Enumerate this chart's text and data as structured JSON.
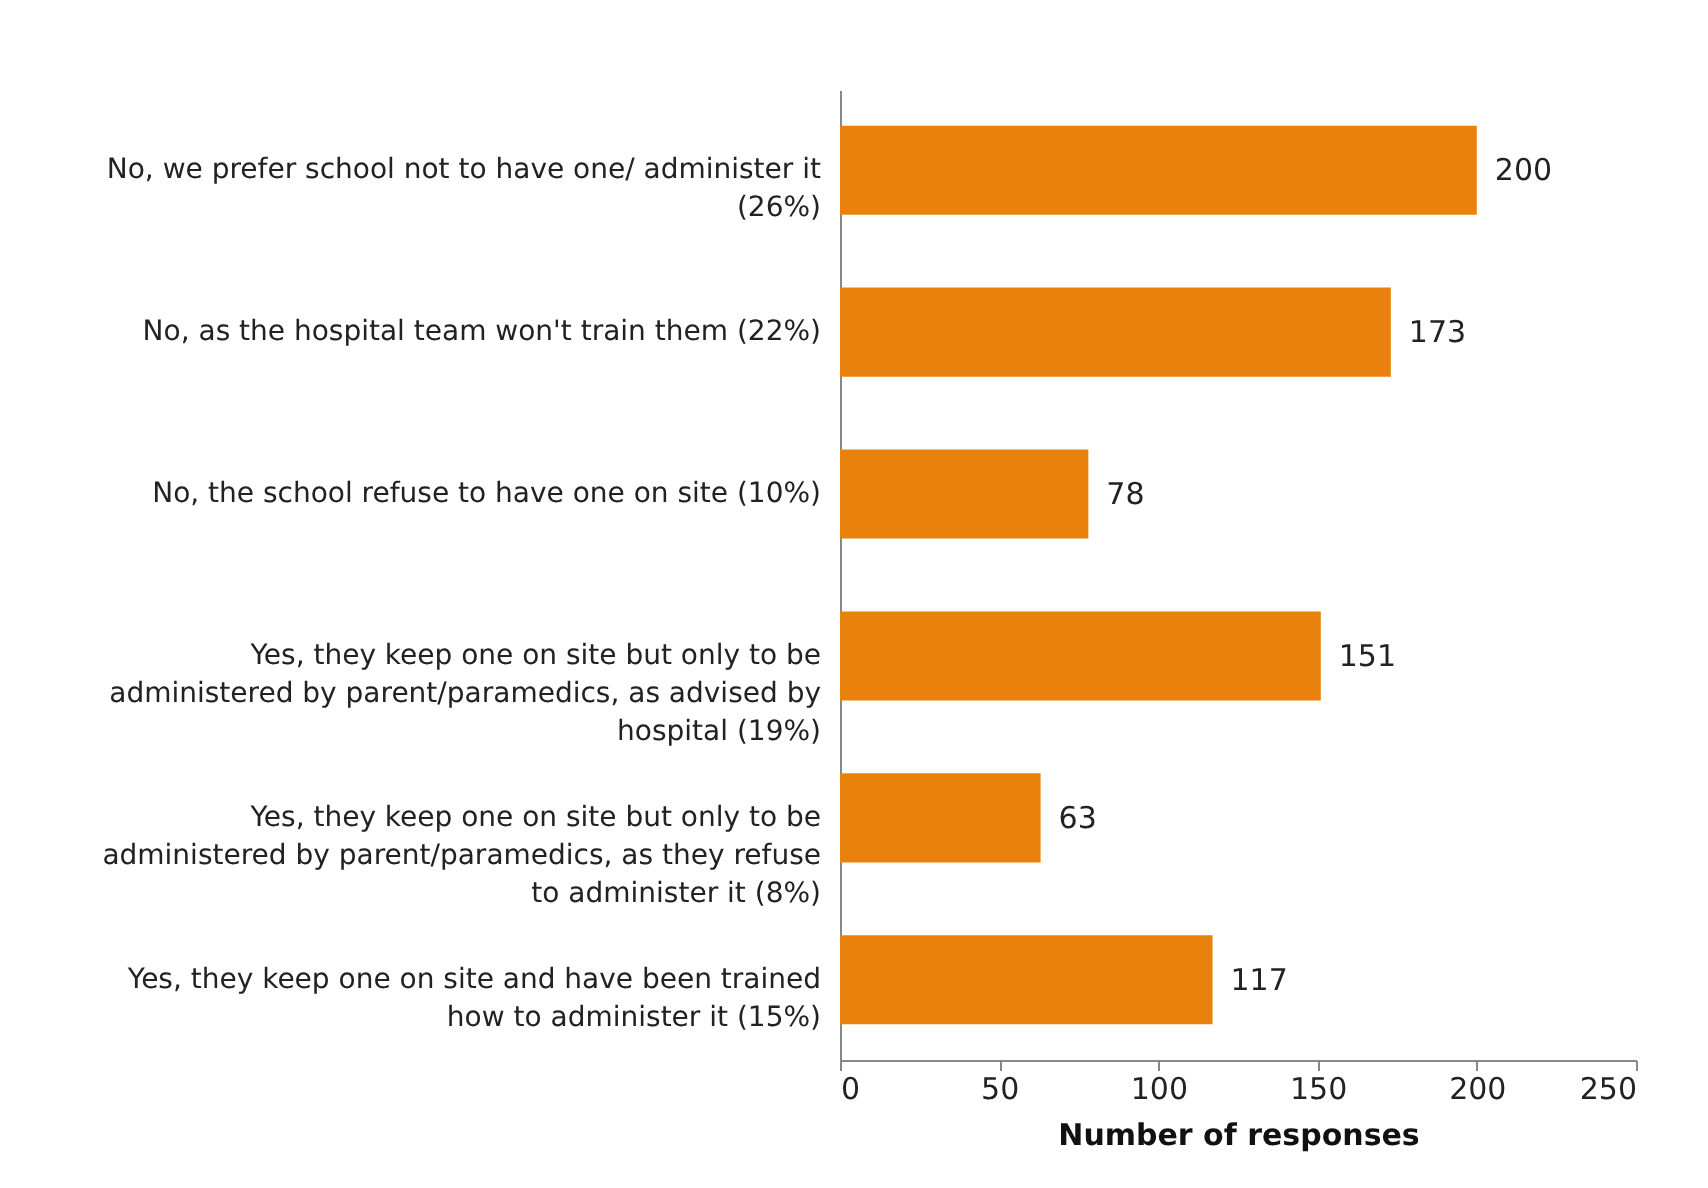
{
  "chart_data": {
    "type": "bar",
    "orientation": "horizontal",
    "xlabel": "Number of responses",
    "categories": [
      "No, we prefer school not to have one/ administer it (26%)",
      "No, as the hospital team won't train them (22%)",
      "No, the school refuse to have one on site (10%)",
      "Yes, they keep one on site but only to be administered by parent/paramedics, as advised by hospital (19%)",
      "Yes, they keep one on site but only to be administered by parent/paramedics, as they refuse to administer it (8%)",
      "Yes, they keep one on site and have been trained how to administer it (15%)"
    ],
    "values": [
      200,
      173,
      78,
      151,
      63,
      117
    ],
    "color": "#e8820c",
    "xlim": [
      0,
      250
    ],
    "xticks": [
      0,
      50,
      100,
      150,
      200,
      250
    ],
    "data_labels": true
  }
}
